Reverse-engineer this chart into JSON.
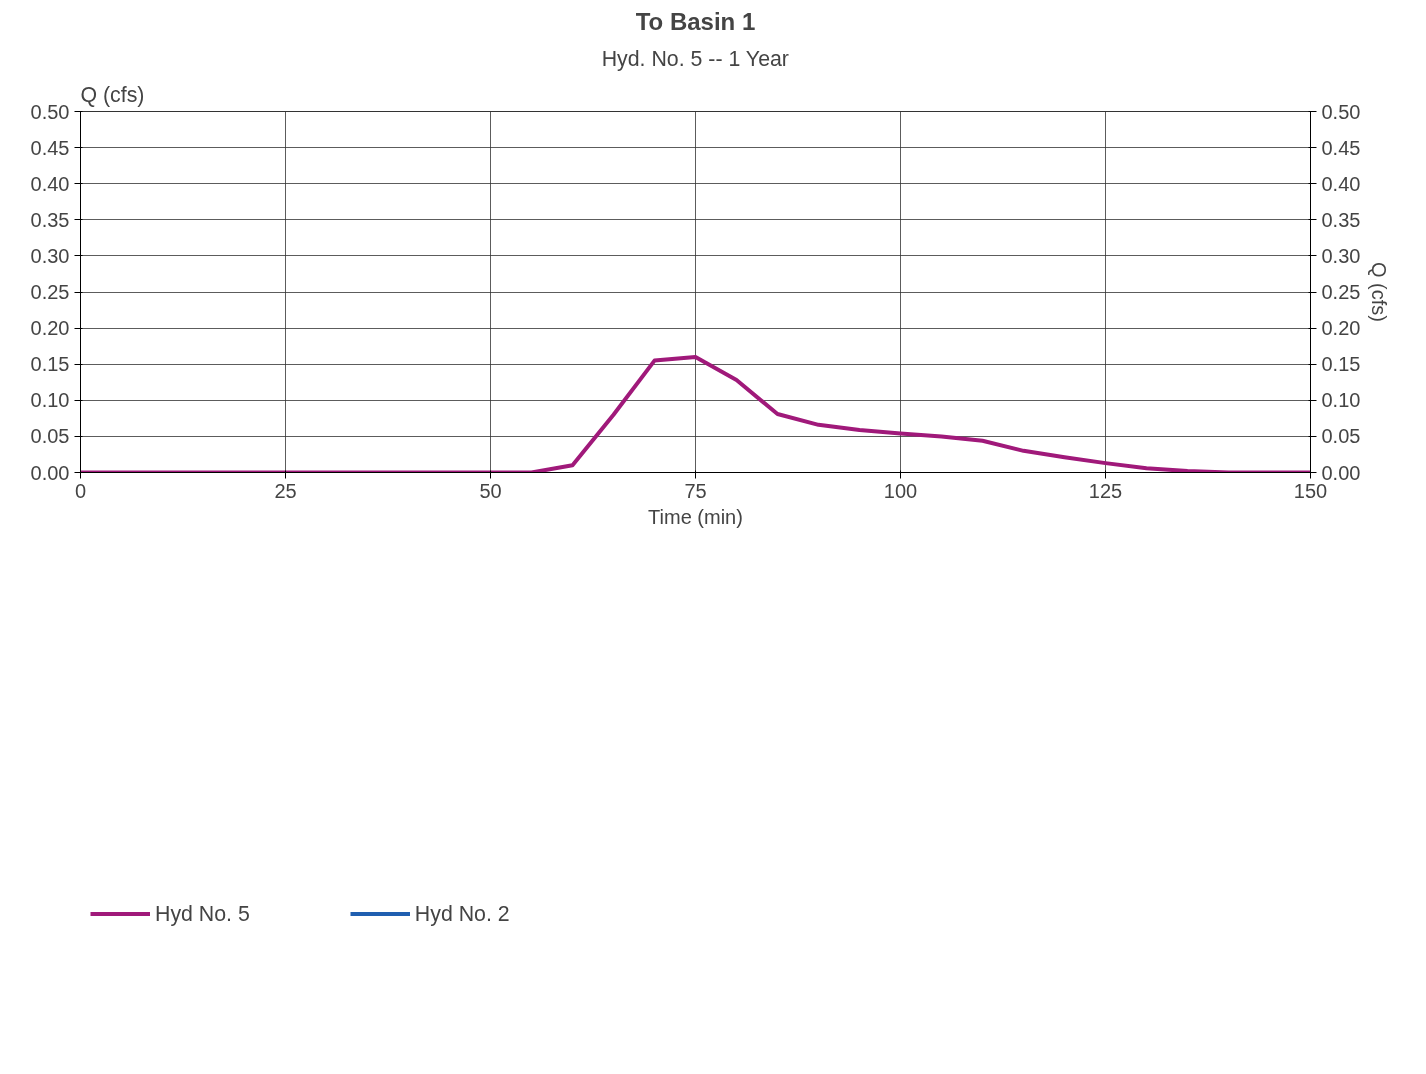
{
  "chart_data": {
    "type": "line",
    "title": "To Basin 1",
    "subtitle": "Hyd. No. 5 -- 1 Year",
    "xlabel": "Time (min)",
    "ylabel": "Q (cfs)",
    "y2label": "Q (cfs)",
    "x": [
      0,
      55,
      60,
      65,
      70,
      75,
      80,
      85,
      90,
      95,
      100,
      105,
      110,
      115,
      120,
      125,
      130,
      135,
      140,
      150
    ],
    "series": [
      {
        "name": "Hyd No. 5",
        "color": "#a0197a",
        "values": [
          0,
          0,
          0.01,
          0.08,
          0.155,
          0.16,
          0.128,
          0.081,
          0.066,
          0.059,
          0.054,
          0.05,
          0.044,
          0.03,
          0.021,
          0.013,
          0.006,
          0.002,
          0,
          0
        ]
      },
      {
        "name": "Hyd No. 2",
        "color": "#1f5fb0",
        "values": [
          null,
          null,
          null,
          null,
          null,
          null,
          null,
          null,
          null,
          null,
          null,
          null,
          null,
          null,
          null,
          null,
          null,
          null,
          null,
          null
        ]
      }
    ],
    "xlim": [
      0,
      150
    ],
    "xticks": [
      0,
      25,
      50,
      75,
      100,
      125,
      150
    ],
    "ylim": [
      0,
      0.5
    ],
    "yticks": [
      {
        "value": 0,
        "label": "0.00"
      },
      {
        "value": 0.05,
        "label": "0.05"
      },
      {
        "value": 0.1,
        "label": "0.10"
      },
      {
        "value": 0.15,
        "label": "0.15"
      },
      {
        "value": 0.2,
        "label": "0.20"
      },
      {
        "value": 0.25,
        "label": "0.25"
      },
      {
        "value": 0.3,
        "label": "0.30"
      },
      {
        "value": 0.35,
        "label": "0.35"
      },
      {
        "value": 0.4,
        "label": "0.40"
      },
      {
        "value": 0.45,
        "label": "0.45"
      },
      {
        "value": 0.5,
        "label": "0.50"
      }
    ],
    "y2lim": [
      0,
      0.5
    ],
    "y2ticks": [
      {
        "value": 0,
        "label": "0.00"
      },
      {
        "value": 0.05,
        "label": "0.05"
      },
      {
        "value": 0.1,
        "label": "0.10"
      },
      {
        "value": 0.15,
        "label": "0.15"
      },
      {
        "value": 0.2,
        "label": "0.20"
      },
      {
        "value": 0.25,
        "label": "0.25"
      },
      {
        "value": 0.3,
        "label": "0.30"
      },
      {
        "value": 0.35,
        "label": "0.35"
      },
      {
        "value": 0.4,
        "label": "0.40"
      },
      {
        "value": 0.45,
        "label": "0.45"
      },
      {
        "value": 0.5,
        "label": "0.50"
      }
    ],
    "grid": true,
    "legend": "bottom left",
    "line_style": "solid"
  }
}
